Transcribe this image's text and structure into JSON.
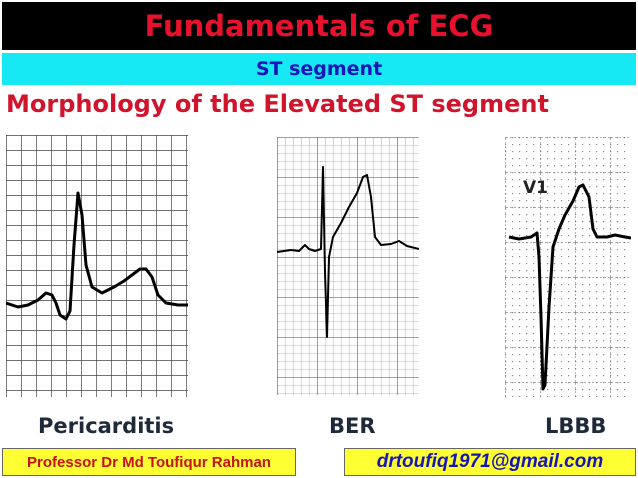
{
  "header": {
    "title": "Fundamentals of ECG"
  },
  "subheader": {
    "text": "ST segment"
  },
  "section": {
    "heading": "Morphology of the Elevated ST segment"
  },
  "ecg_strips": [
    {
      "caption": "Pericarditis"
    },
    {
      "caption": "BER"
    },
    {
      "caption": "LBBB",
      "lead_label": "V1"
    }
  ],
  "footer": {
    "author": "Professor Dr Md Toufiqur Rahman",
    "email": "drtoufiq1971@gmail.com"
  },
  "colors": {
    "title_bar": "#000000",
    "title_text": "#e8112d",
    "subheader_bar": "#16e8f4",
    "subheader_text": "#1515b8",
    "heading_text": "#d1142c",
    "footer_bg": "#ffff33"
  }
}
